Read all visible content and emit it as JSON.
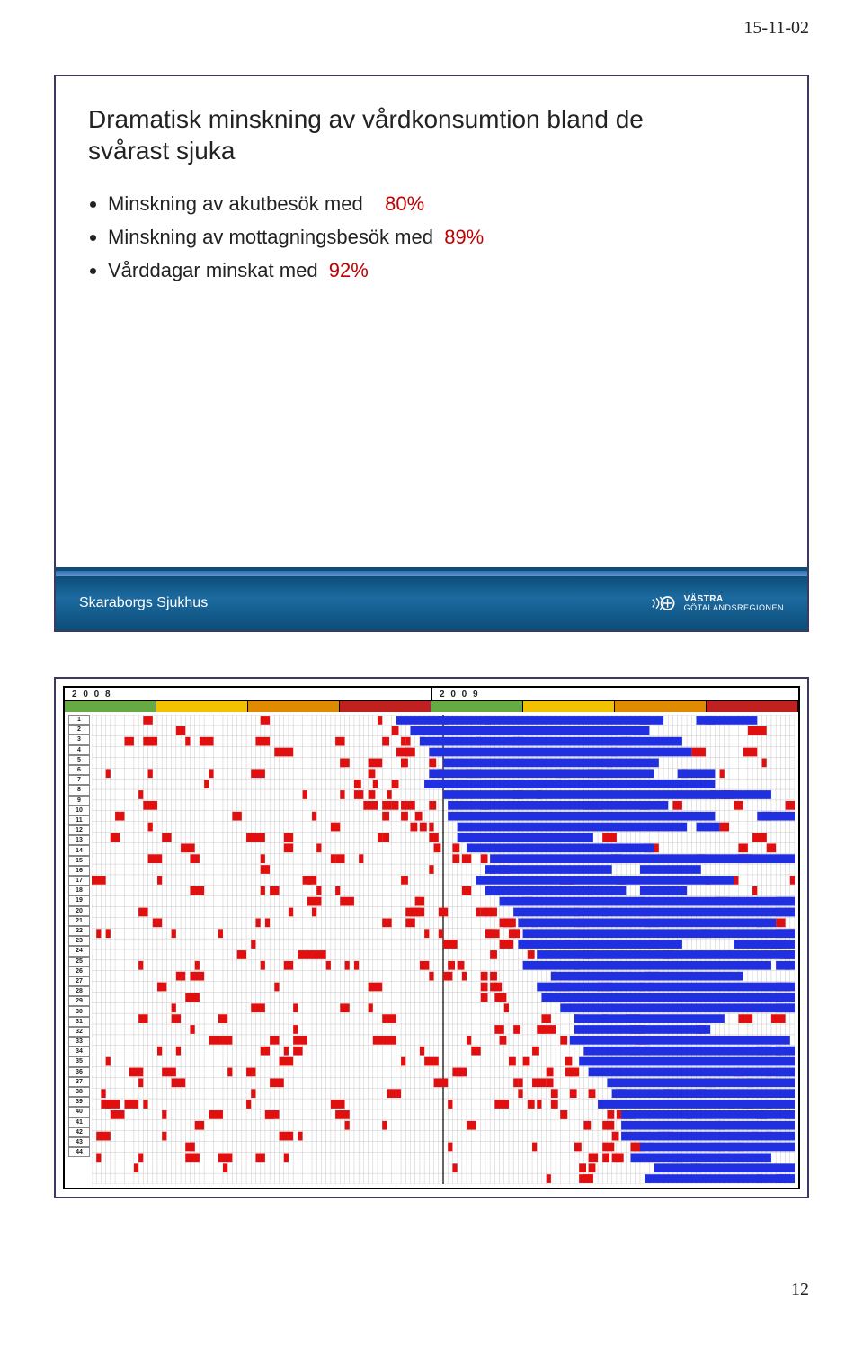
{
  "header_date": "15-11-02",
  "page_number": "12",
  "slide1": {
    "title_line1": "Dramatisk minskning av vårdkonsumtion bland de",
    "title_line2": "svårast sjuka",
    "bullet1_text": "Minskning av akutbesök med",
    "bullet1_pct": "80%",
    "bullet2_text": "Minskning av mottagningsbesök med",
    "bullet2_pct": "89%",
    "bullet3_text": "Vårddagar minskat med",
    "bullet3_pct": "92%",
    "footer_left": "Skaraborgs Sjukhus",
    "footer_logo_line1": "VÄSTRA",
    "footer_logo_line2": "GÖTALANDSREGIONEN"
  },
  "slide2": {
    "year_left": "2 0 0 8",
    "year_right": "2 0 0 9",
    "band_colors": [
      "#66aa44",
      "#f2c200",
      "#e08a00",
      "#c02020"
    ],
    "n_rows": 44,
    "n_cols": 150,
    "row_height": 11.2,
    "blue": "#2030e0",
    "red": "#e01010",
    "grid": "#bdbdbd",
    "seed": 7
  }
}
